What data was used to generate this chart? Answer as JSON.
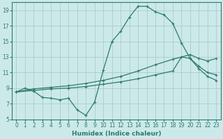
{
  "xlabel": "Humidex (Indice chaleur)",
  "bg_color": "#cce9e9",
  "grid_color": "#aacccc",
  "line_color": "#2d7a6e",
  "xlim": [
    -0.5,
    23.5
  ],
  "ylim": [
    5,
    20
  ],
  "xticks": [
    0,
    1,
    2,
    3,
    4,
    5,
    6,
    7,
    8,
    9,
    10,
    11,
    12,
    13,
    14,
    15,
    16,
    17,
    18,
    19,
    20,
    21,
    22,
    23
  ],
  "yticks": [
    5,
    7,
    9,
    11,
    13,
    15,
    17,
    19
  ],
  "line1_x": [
    0,
    1,
    2,
    3,
    4,
    5,
    6,
    7,
    8,
    9,
    10,
    11,
    12,
    13,
    14,
    15,
    16,
    17,
    18,
    19,
    20,
    21,
    22,
    23
  ],
  "line1_y": [
    8.5,
    9.0,
    8.6,
    7.8,
    7.7,
    7.5,
    7.7,
    6.2,
    5.5,
    7.2,
    11.3,
    15.0,
    16.3,
    18.1,
    19.5,
    19.5,
    18.8,
    18.4,
    17.3,
    14.8,
    12.8,
    11.5,
    10.5,
    10.0
  ],
  "line2_x": [
    0,
    2,
    4,
    6,
    8,
    10,
    12,
    14,
    16,
    18,
    20,
    21,
    22,
    23
  ],
  "line2_y": [
    8.5,
    8.9,
    9.1,
    9.3,
    9.6,
    10.0,
    10.5,
    11.2,
    12.0,
    12.7,
    13.3,
    12.8,
    12.5,
    12.8
  ],
  "line3_x": [
    0,
    2,
    4,
    6,
    8,
    10,
    12,
    14,
    16,
    18,
    19,
    20,
    21,
    22,
    23
  ],
  "line3_y": [
    8.5,
    8.7,
    8.9,
    9.0,
    9.2,
    9.5,
    9.8,
    10.2,
    10.7,
    11.2,
    13.0,
    12.8,
    11.8,
    11.0,
    10.7
  ]
}
